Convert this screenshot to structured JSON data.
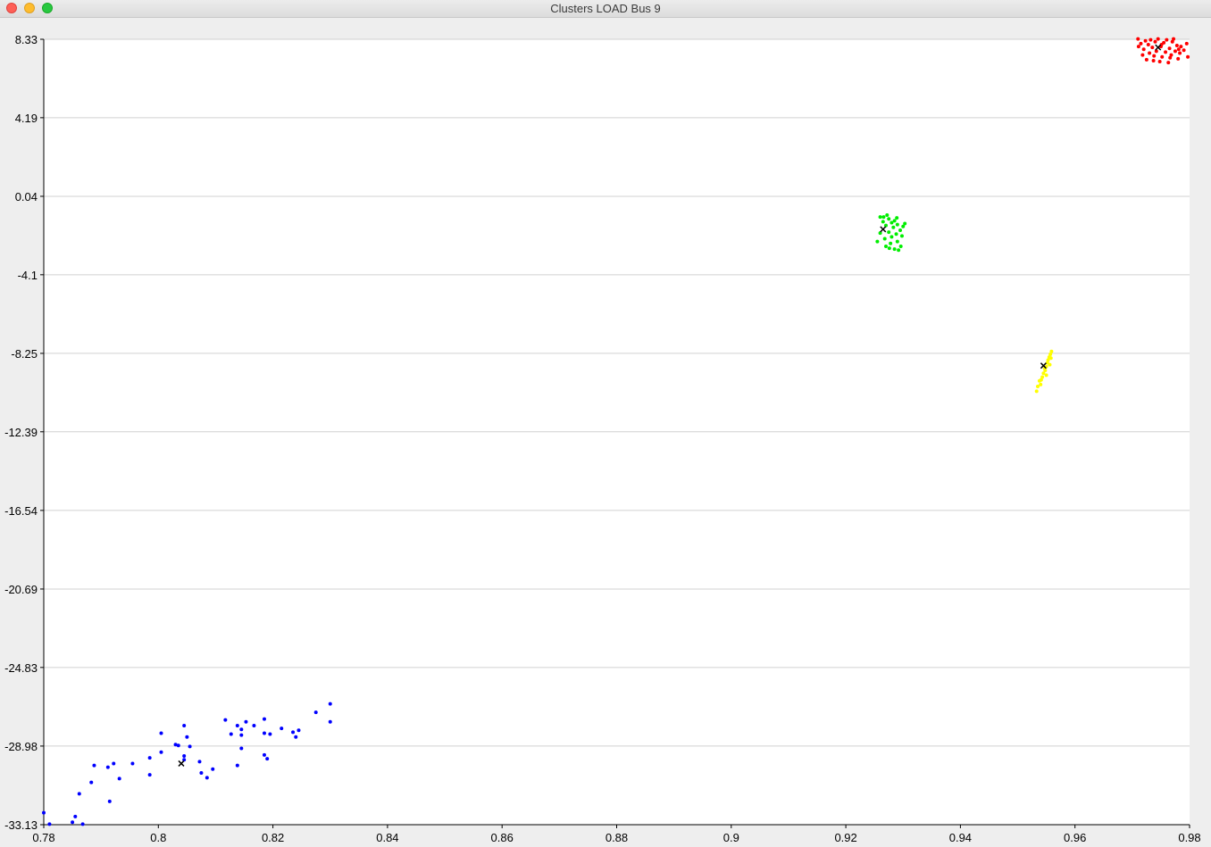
{
  "window": {
    "title": "Clusters LOAD Bus 9"
  },
  "chart_data": {
    "type": "scatter",
    "title": "",
    "xlabel": "",
    "ylabel": "",
    "xlim": [
      0.78,
      0.98
    ],
    "ylim": [
      -33.13,
      8.33
    ],
    "x_ticks": [
      "0.78",
      "0.8",
      "0.82",
      "0.84",
      "0.86",
      "0.88",
      "0.9",
      "0.92",
      "0.94",
      "0.96",
      "0.98"
    ],
    "y_ticks": [
      "8.33",
      "4.19",
      "0.04",
      "-4.1",
      "-8.25",
      "-12.39",
      "-16.54",
      "-20.69",
      "-24.83",
      "-28.98",
      "-33.13"
    ],
    "grid": "horizontal",
    "colors": {
      "blue": "#0000ff",
      "green": "#00ee00",
      "yellow": "#ffff00",
      "red": "#ff0000",
      "centroid": "#000000"
    },
    "series": [
      {
        "color": "#0000ff",
        "centroid": [
          0.804,
          -29.9
        ],
        "points": [
          [
            0.78,
            -32.5
          ],
          [
            0.781,
            -33.1
          ],
          [
            0.785,
            -33.0
          ],
          [
            0.7855,
            -32.7
          ],
          [
            0.7862,
            -31.5
          ],
          [
            0.7868,
            -33.1
          ],
          [
            0.7883,
            -30.9
          ],
          [
            0.7888,
            -30.0
          ],
          [
            0.7915,
            -31.9
          ],
          [
            0.7912,
            -30.1
          ],
          [
            0.7922,
            -29.9
          ],
          [
            0.7932,
            -30.7
          ],
          [
            0.7955,
            -29.9
          ],
          [
            0.7985,
            -29.6
          ],
          [
            0.7985,
            -30.5
          ],
          [
            0.8005,
            -29.3
          ],
          [
            0.8005,
            -28.3
          ],
          [
            0.803,
            -28.9
          ],
          [
            0.8035,
            -28.95
          ],
          [
            0.8045,
            -29.5
          ],
          [
            0.8045,
            -29.7
          ],
          [
            0.805,
            -28.5
          ],
          [
            0.8055,
            -29.0
          ],
          [
            0.8045,
            -27.9
          ],
          [
            0.8072,
            -29.8
          ],
          [
            0.8075,
            -30.4
          ],
          [
            0.8085,
            -30.65
          ],
          [
            0.8095,
            -30.2
          ],
          [
            0.8117,
            -27.6
          ],
          [
            0.8127,
            -28.35
          ],
          [
            0.8138,
            -27.9
          ],
          [
            0.8145,
            -28.1
          ],
          [
            0.8145,
            -28.4
          ],
          [
            0.8145,
            -29.1
          ],
          [
            0.8138,
            -30.0
          ],
          [
            0.8153,
            -27.7
          ],
          [
            0.8167,
            -27.9
          ],
          [
            0.8185,
            -27.55
          ],
          [
            0.8185,
            -28.3
          ],
          [
            0.8185,
            -29.45
          ],
          [
            0.819,
            -29.65
          ],
          [
            0.8195,
            -28.35
          ],
          [
            0.8215,
            -28.05
          ],
          [
            0.8235,
            -28.25
          ],
          [
            0.824,
            -28.5
          ],
          [
            0.8245,
            -28.15
          ],
          [
            0.8275,
            -27.2
          ],
          [
            0.83,
            -26.75
          ],
          [
            0.83,
            -27.7
          ]
        ]
      },
      {
        "color": "#00ee00",
        "centroid": [
          0.9265,
          -1.7
        ],
        "points": [
          [
            0.9255,
            -2.35
          ],
          [
            0.926,
            -1.05
          ],
          [
            0.9265,
            -1.3
          ],
          [
            0.926,
            -1.9
          ],
          [
            0.9268,
            -2.2
          ],
          [
            0.927,
            -1.5
          ],
          [
            0.927,
            -2.6
          ],
          [
            0.9272,
            -0.95
          ],
          [
            0.9275,
            -1.15
          ],
          [
            0.9275,
            -1.85
          ],
          [
            0.9278,
            -2.45
          ],
          [
            0.928,
            -1.35
          ],
          [
            0.928,
            -2.1
          ],
          [
            0.9283,
            -1.6
          ],
          [
            0.9285,
            -2.75
          ],
          [
            0.9285,
            -1.25
          ],
          [
            0.9288,
            -1.95
          ],
          [
            0.929,
            -2.35
          ],
          [
            0.929,
            -1.45
          ],
          [
            0.9292,
            -2.8
          ],
          [
            0.9295,
            -1.75
          ],
          [
            0.9298,
            -2.05
          ],
          [
            0.93,
            -1.55
          ],
          [
            0.9303,
            -1.4
          ],
          [
            0.9296,
            -2.6
          ],
          [
            0.9266,
            -1.05
          ],
          [
            0.9276,
            -2.7
          ],
          [
            0.9289,
            -1.1
          ]
        ]
      },
      {
        "color": "#ffff00",
        "centroid": [
          0.9545,
          -8.9
        ],
        "points": [
          [
            0.9533,
            -10.25
          ],
          [
            0.9535,
            -10.0
          ],
          [
            0.9538,
            -9.7
          ],
          [
            0.954,
            -9.9
          ],
          [
            0.9543,
            -9.5
          ],
          [
            0.9545,
            -9.3
          ],
          [
            0.9548,
            -9.15
          ],
          [
            0.955,
            -8.95
          ],
          [
            0.955,
            -9.4
          ],
          [
            0.9552,
            -8.75
          ],
          [
            0.9553,
            -8.6
          ],
          [
            0.9555,
            -8.45
          ],
          [
            0.9556,
            -8.85
          ],
          [
            0.9557,
            -8.3
          ],
          [
            0.9558,
            -8.5
          ],
          [
            0.9559,
            -8.15
          ],
          [
            0.9541,
            -9.65
          ],
          [
            0.9547,
            -9.05
          ]
        ]
      },
      {
        "color": "#ff0000",
        "centroid": [
          0.9745,
          7.9
        ],
        "points": [
          [
            0.971,
            8.35
          ],
          [
            0.9715,
            8.1
          ],
          [
            0.9718,
            7.5
          ],
          [
            0.972,
            7.8
          ],
          [
            0.9725,
            7.25
          ],
          [
            0.9728,
            8.05
          ],
          [
            0.973,
            7.6
          ],
          [
            0.9732,
            8.3
          ],
          [
            0.9735,
            7.9
          ],
          [
            0.9738,
            7.45
          ],
          [
            0.974,
            8.2
          ],
          [
            0.9742,
            7.7
          ],
          [
            0.9745,
            8.35
          ],
          [
            0.9748,
            7.15
          ],
          [
            0.975,
            7.95
          ],
          [
            0.9752,
            7.4
          ],
          [
            0.9755,
            8.15
          ],
          [
            0.9758,
            7.65
          ],
          [
            0.976,
            8.3
          ],
          [
            0.9763,
            7.1
          ],
          [
            0.9765,
            7.85
          ],
          [
            0.9768,
            7.5
          ],
          [
            0.977,
            8.2
          ],
          [
            0.9772,
            8.35
          ],
          [
            0.9775,
            7.7
          ],
          [
            0.9778,
            8.0
          ],
          [
            0.978,
            7.3
          ],
          [
            0.9783,
            7.6
          ],
          [
            0.9785,
            7.95
          ],
          [
            0.979,
            7.75
          ],
          [
            0.9795,
            8.1
          ],
          [
            0.9797,
            7.4
          ],
          [
            0.9723,
            8.25
          ],
          [
            0.9737,
            7.2
          ],
          [
            0.9751,
            8.05
          ],
          [
            0.9766,
            7.35
          ],
          [
            0.9781,
            7.8
          ],
          [
            0.9711,
            7.95
          ]
        ]
      }
    ]
  }
}
